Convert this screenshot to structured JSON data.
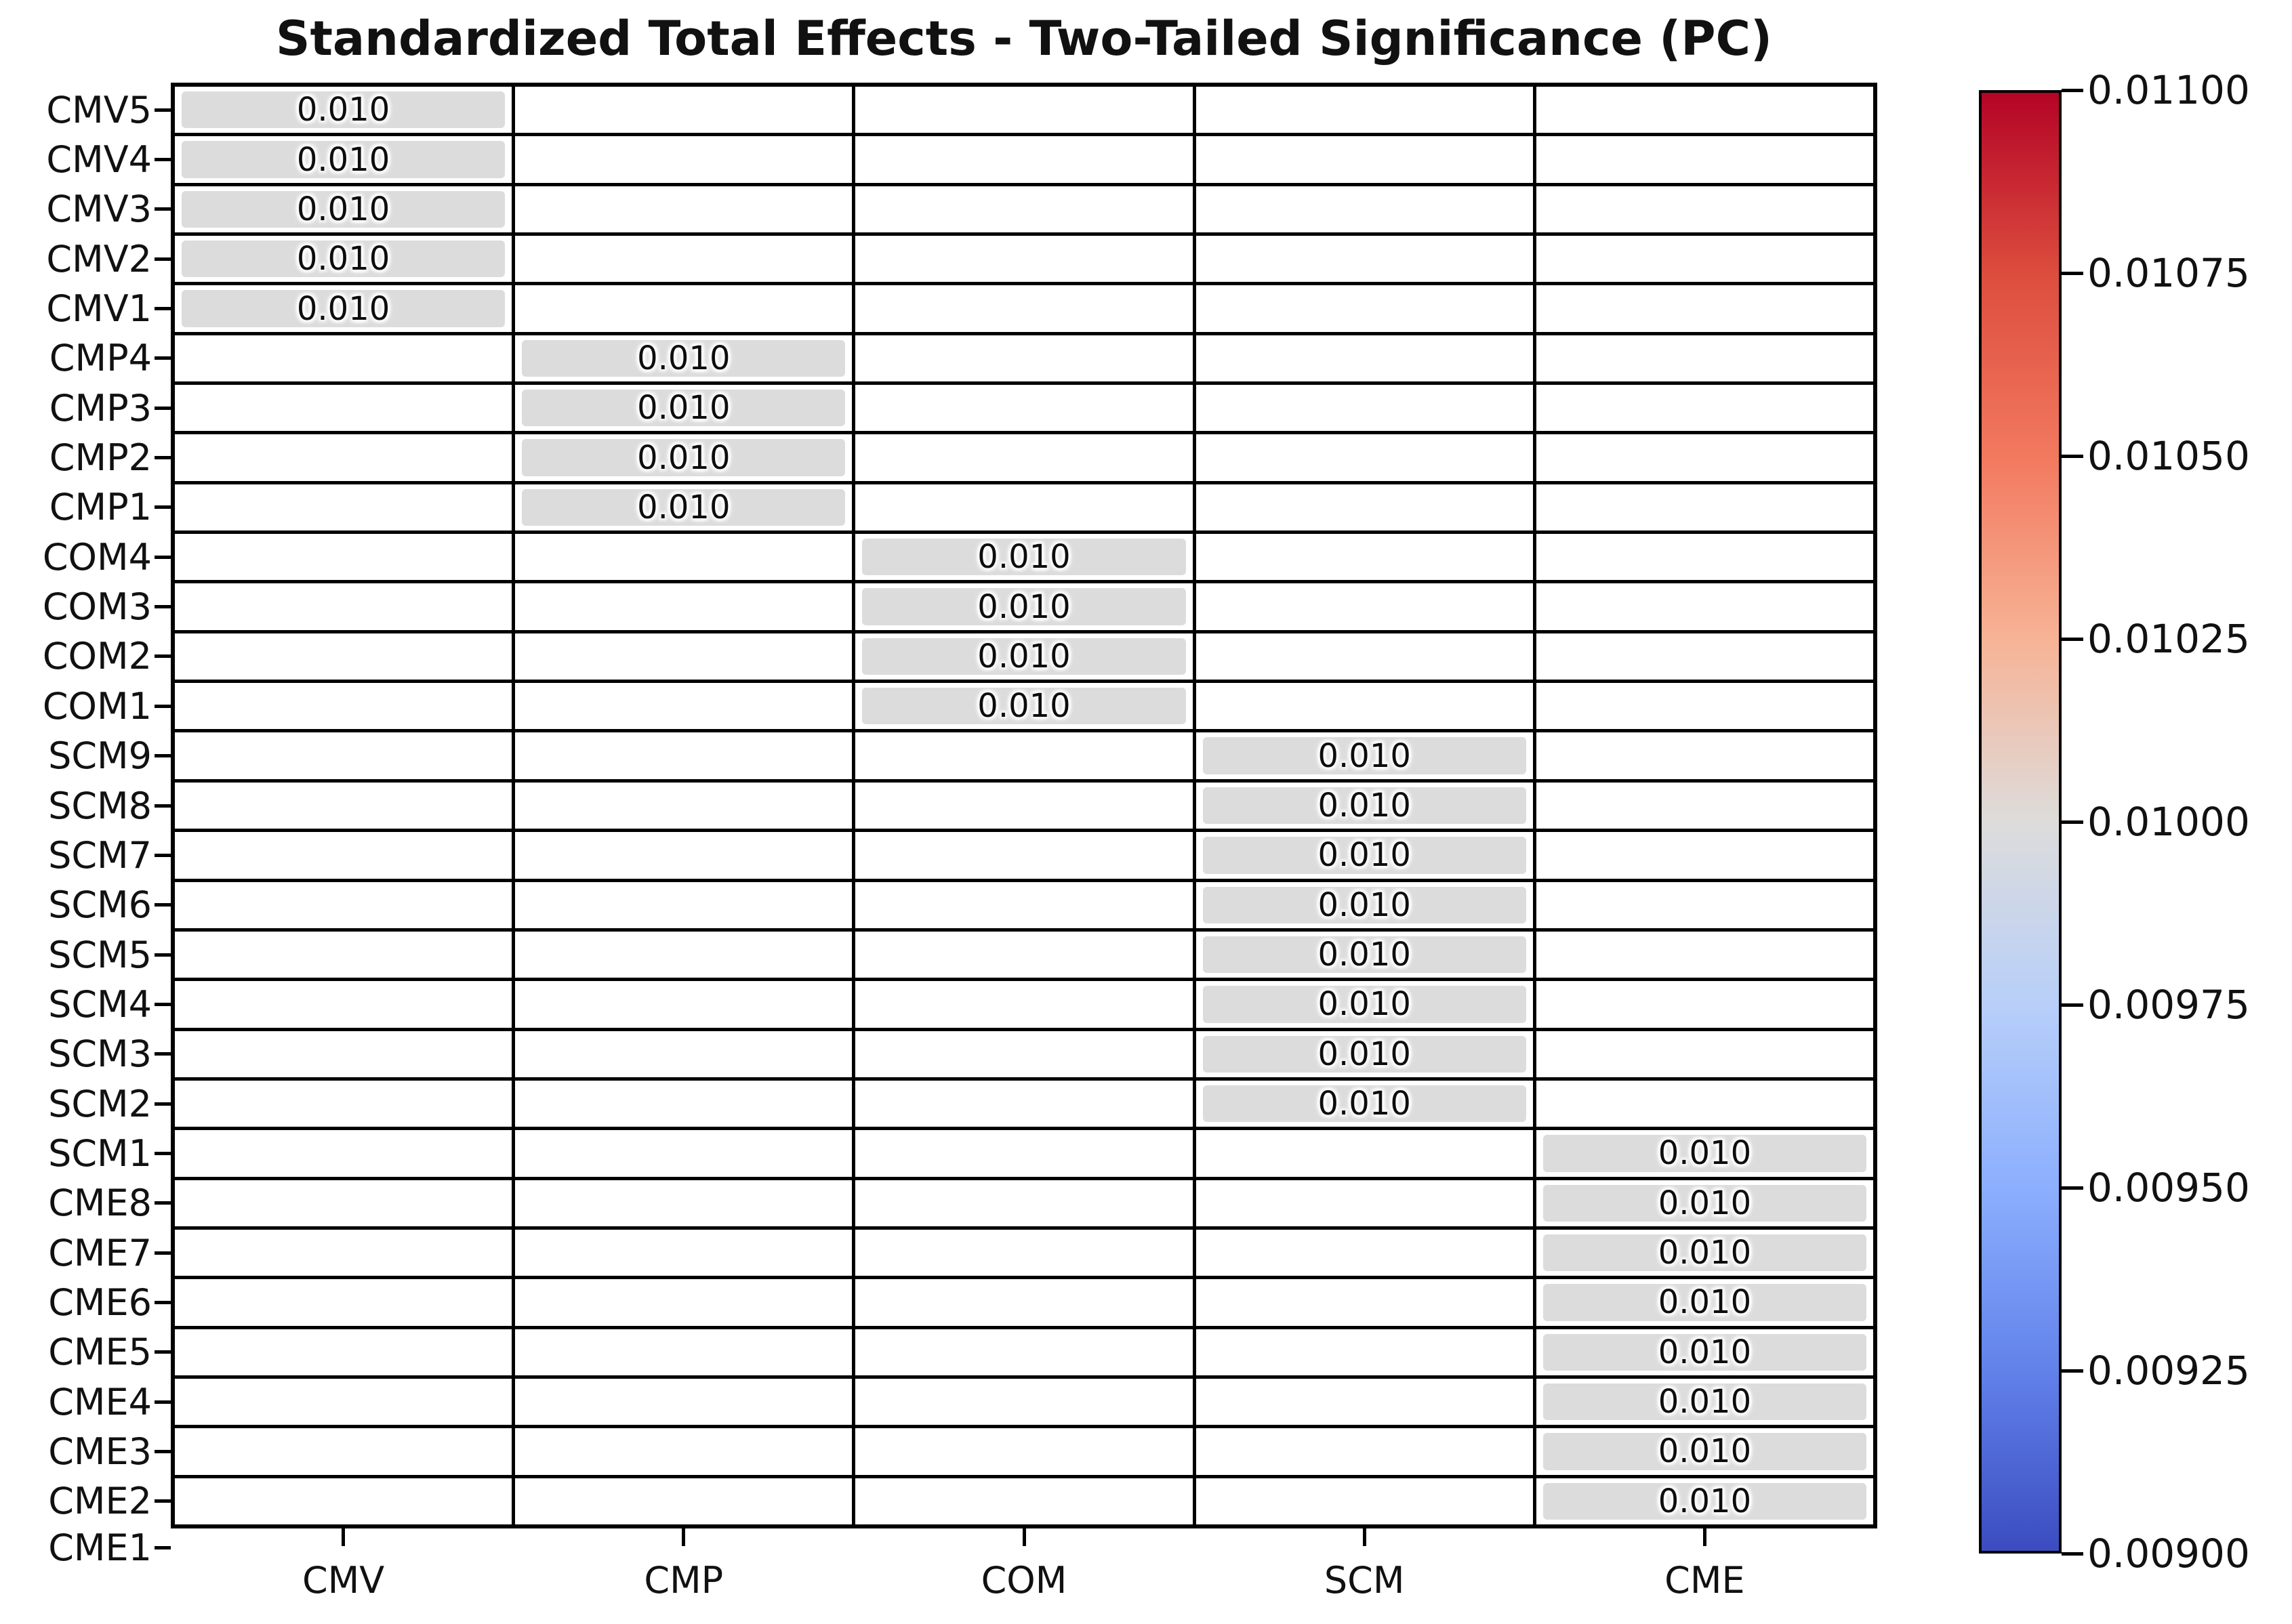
{
  "chart_data": {
    "type": "heatmap",
    "title": "Standardized Total Effects - Two-Tailed Significance (PC)",
    "x_categories": [
      "CMV",
      "CMP",
      "COM",
      "SCM",
      "CME"
    ],
    "y_categories": [
      "CMV5",
      "CMV4",
      "CMV3",
      "CMV2",
      "CMV1",
      "CMP4",
      "CMP3",
      "CMP2",
      "CMP1",
      "COM4",
      "COM3",
      "COM2",
      "COM1",
      "SCM9",
      "SCM8",
      "SCM7",
      "SCM6",
      "SCM5",
      "SCM4",
      "SCM3",
      "SCM2",
      "SCM1",
      "CME8",
      "CME7",
      "CME6",
      "CME5",
      "CME4",
      "CME3",
      "CME2",
      "CME1"
    ],
    "cells": [
      {
        "row": "CMV5",
        "col": "CMV",
        "value": 0.01,
        "label": "0.010"
      },
      {
        "row": "CMV4",
        "col": "CMV",
        "value": 0.01,
        "label": "0.010"
      },
      {
        "row": "CMV3",
        "col": "CMV",
        "value": 0.01,
        "label": "0.010"
      },
      {
        "row": "CMV2",
        "col": "CMV",
        "value": 0.01,
        "label": "0.010"
      },
      {
        "row": "CMV1",
        "col": "CMV",
        "value": 0.01,
        "label": "0.010"
      },
      {
        "row": "CMP4",
        "col": "CMP",
        "value": 0.01,
        "label": "0.010"
      },
      {
        "row": "CMP3",
        "col": "CMP",
        "value": 0.01,
        "label": "0.010"
      },
      {
        "row": "CMP2",
        "col": "CMP",
        "value": 0.01,
        "label": "0.010"
      },
      {
        "row": "CMP1",
        "col": "CMP",
        "value": 0.01,
        "label": "0.010"
      },
      {
        "row": "COM4",
        "col": "COM",
        "value": 0.01,
        "label": "0.010"
      },
      {
        "row": "COM3",
        "col": "COM",
        "value": 0.01,
        "label": "0.010"
      },
      {
        "row": "COM2",
        "col": "COM",
        "value": 0.01,
        "label": "0.010"
      },
      {
        "row": "COM1",
        "col": "COM",
        "value": 0.01,
        "label": "0.010"
      },
      {
        "row": "SCM9",
        "col": "SCM",
        "value": 0.01,
        "label": "0.010"
      },
      {
        "row": "SCM8",
        "col": "SCM",
        "value": 0.01,
        "label": "0.010"
      },
      {
        "row": "SCM7",
        "col": "SCM",
        "value": 0.01,
        "label": "0.010"
      },
      {
        "row": "SCM6",
        "col": "SCM",
        "value": 0.01,
        "label": "0.010"
      },
      {
        "row": "SCM5",
        "col": "SCM",
        "value": 0.01,
        "label": "0.010"
      },
      {
        "row": "SCM4",
        "col": "SCM",
        "value": 0.01,
        "label": "0.010"
      },
      {
        "row": "SCM3",
        "col": "SCM",
        "value": 0.01,
        "label": "0.010"
      },
      {
        "row": "SCM2",
        "col": "SCM",
        "value": 0.01,
        "label": "0.010"
      },
      {
        "row": "SCM1",
        "col": "CME",
        "value": 0.01,
        "label": "0.010"
      },
      {
        "row": "CME8",
        "col": "CME",
        "value": 0.01,
        "label": "0.010"
      },
      {
        "row": "CME7",
        "col": "CME",
        "value": 0.01,
        "label": "0.010"
      },
      {
        "row": "CME6",
        "col": "CME",
        "value": 0.01,
        "label": "0.010"
      },
      {
        "row": "CME5",
        "col": "CME",
        "value": 0.01,
        "label": "0.010"
      },
      {
        "row": "CME4",
        "col": "CME",
        "value": 0.01,
        "label": "0.010"
      },
      {
        "row": "CME3",
        "col": "CME",
        "value": 0.01,
        "label": "0.010"
      },
      {
        "row": "CME2",
        "col": "CME",
        "value": 0.01,
        "label": "0.010"
      }
    ],
    "annotated_cell_color": "#dcdcdc",
    "empty_cell_color": "#ffffff",
    "grid_line_color": "#000000",
    "grid": true,
    "legend": null,
    "colorbar": {
      "position": "right",
      "colormap": "coolwarm",
      "vmin": 0.009,
      "vmax": 0.011,
      "tick_labels": [
        "0.01100",
        "0.01075",
        "0.01050",
        "0.01025",
        "0.01000",
        "0.00975",
        "0.00950",
        "0.00925",
        "0.00900"
      ],
      "gradient_stops_top_to_bottom": [
        "#b40426",
        "#dd4d3e",
        "#f2795f",
        "#f7b396",
        "#dddcdb",
        "#b8cff9",
        "#8caffe",
        "#6282ea",
        "#3b4cc0"
      ]
    }
  }
}
